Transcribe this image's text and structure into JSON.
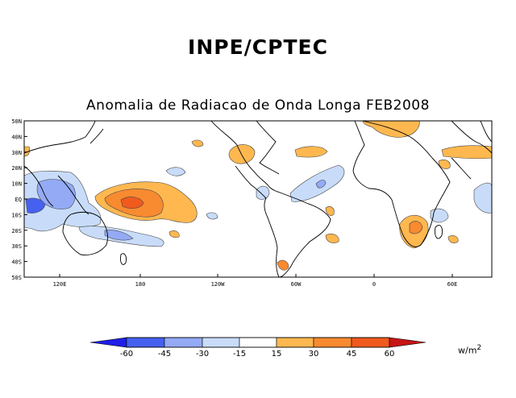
{
  "header": {
    "org": "INPE/CPTEC"
  },
  "map": {
    "title": "Anomalia de Radiacao de Onda Longa FEB2008",
    "variable": "OLR anomaly",
    "period": "FEB2008",
    "lat_labels": [
      "50N",
      "40N",
      "30N",
      "20N",
      "10N",
      "EQ",
      "10S",
      "20S",
      "30S",
      "40S",
      "50S"
    ],
    "lon_labels": [
      "120E",
      "180",
      "120W",
      "60W",
      "0",
      "60E"
    ]
  },
  "colorbar": {
    "ticks": [
      "-60",
      "-45",
      "-30",
      "-15",
      "15",
      "30",
      "45",
      "60"
    ],
    "units": "w/m",
    "units_exp": "2",
    "colors": [
      "#1e1ee6",
      "#4660f0",
      "#94aaf5",
      "#c8dcfa",
      "#ffffff",
      "#ffb850",
      "#f88a30",
      "#f05a1e",
      "#c81414"
    ]
  }
}
